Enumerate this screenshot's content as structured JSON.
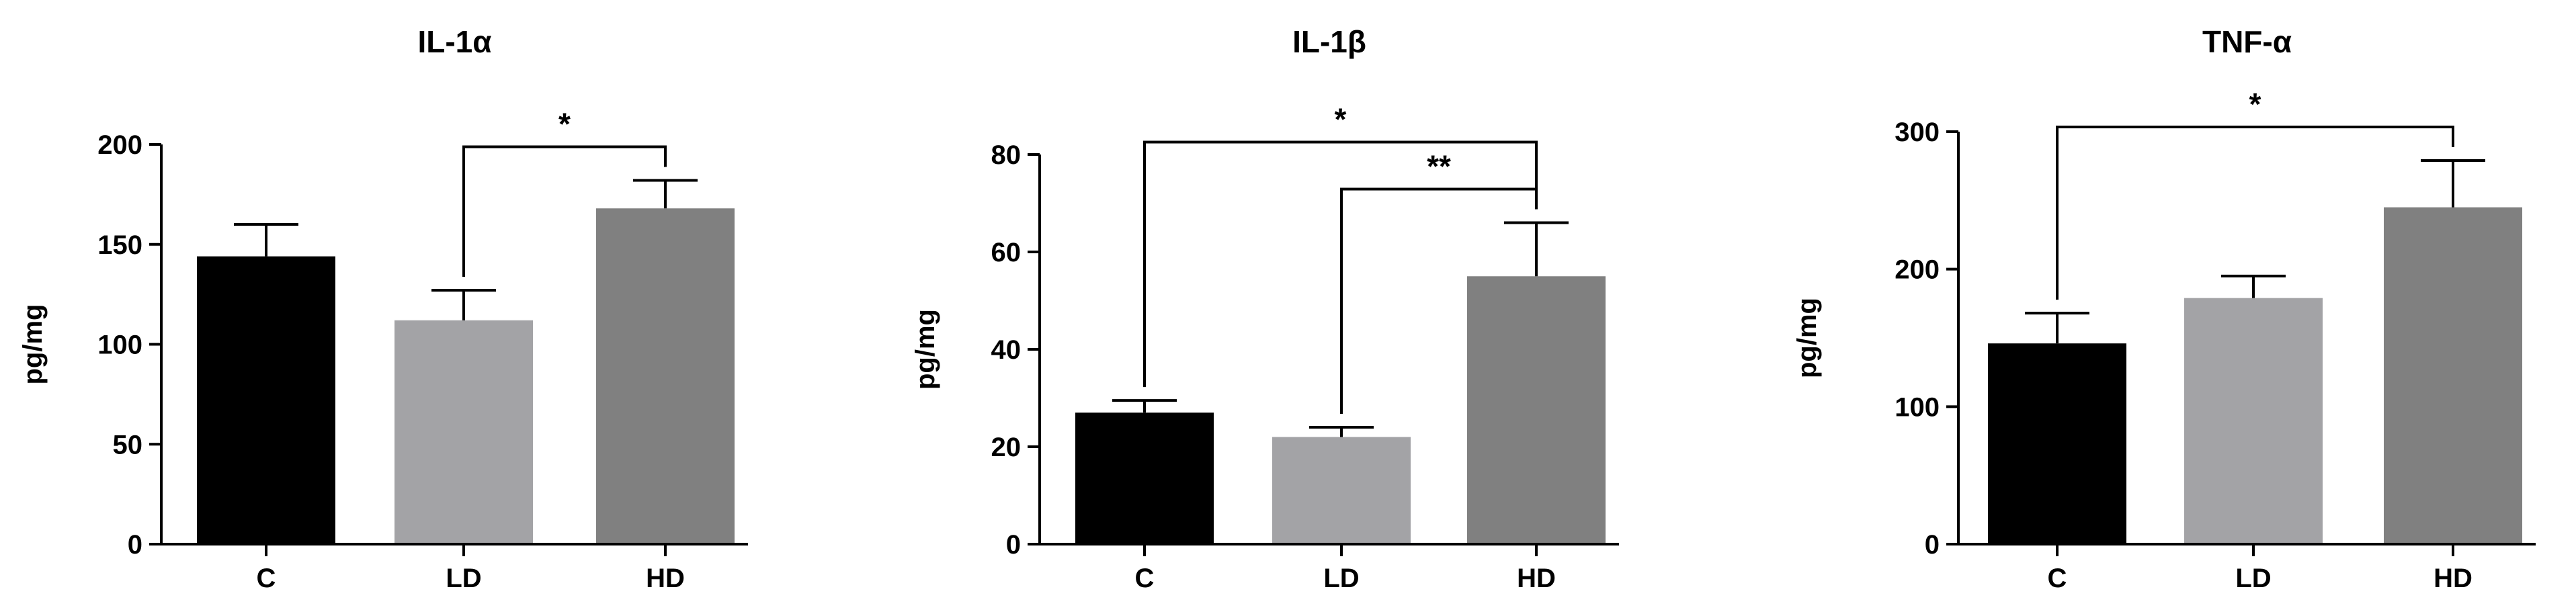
{
  "chart_data": [
    {
      "type": "bar",
      "title": "IL-1α",
      "ylabel": "pg/mg",
      "xlabel": "",
      "categories": [
        "C",
        "LD",
        "HD"
      ],
      "values": [
        144,
        112,
        168
      ],
      "errors": [
        16,
        15,
        14
      ],
      "colors": [
        "#000000",
        "#a3a3a6",
        "#808080"
      ],
      "ylim": [
        0,
        200
      ],
      "yticks": [
        0,
        50,
        100,
        150,
        200
      ],
      "significance": [
        {
          "from": 1,
          "to": 2,
          "label": "*"
        }
      ]
    },
    {
      "type": "bar",
      "title": "IL-1β",
      "ylabel": "pg/mg",
      "xlabel": "",
      "categories": [
        "C",
        "LD",
        "HD"
      ],
      "values": [
        27,
        22,
        55
      ],
      "errors": [
        2.5,
        2,
        11
      ],
      "colors": [
        "#000000",
        "#a3a3a6",
        "#808080"
      ],
      "ylim": [
        0,
        80
      ],
      "yticks": [
        0,
        20,
        40,
        60,
        80
      ],
      "significance": [
        {
          "from": 0,
          "to": 2,
          "label": "*"
        },
        {
          "from": 1,
          "to": 2,
          "label": "**"
        }
      ]
    },
    {
      "type": "bar",
      "title": "TNF-α",
      "ylabel": "pg/mg",
      "xlabel": "",
      "categories": [
        "C",
        "LD",
        "HD"
      ],
      "values": [
        146,
        179,
        245
      ],
      "errors": [
        22,
        16,
        34
      ],
      "colors": [
        "#000000",
        "#a3a3a6",
        "#808080"
      ],
      "ylim": [
        0,
        300
      ],
      "yticks": [
        0,
        100,
        200,
        300
      ],
      "significance": [
        {
          "from": 0,
          "to": 2,
          "label": "*"
        }
      ]
    }
  ]
}
